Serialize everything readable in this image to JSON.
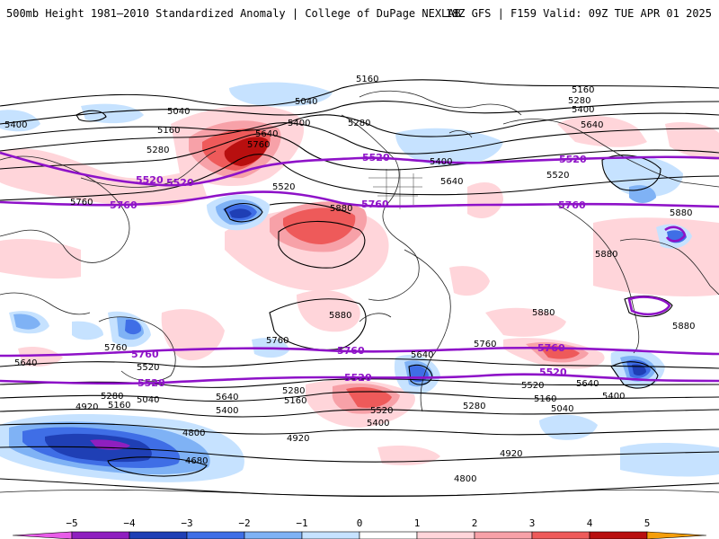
{
  "header": {
    "title_left": "500mb Height 1981–2010 Standardized Anomaly | College of DuPage NEXLAB",
    "title_right": "18Z GFS | F159 Valid: 09Z TUE APR 01 2025"
  },
  "map": {
    "contour_labels_black": [
      "5160",
      "5040",
      "5400",
      "5160",
      "5280",
      "5640",
      "5760",
      "5400",
      "5280",
      "5040",
      "5520",
      "5160",
      "5280",
      "5400",
      "5640",
      "5520",
      "5400",
      "5640",
      "5880",
      "5760",
      "5880",
      "5880",
      "5880",
      "5760",
      "5760",
      "5640",
      "5520",
      "5280",
      "5160",
      "5040",
      "4920",
      "4800",
      "4680",
      "5640",
      "5400",
      "5280",
      "5160",
      "5400",
      "5520",
      "5640",
      "5400",
      "5280",
      "5160",
      "5040",
      "4920",
      "4920",
      "4800",
      "5760",
      "5520",
      "5640",
      "5880",
      "5880"
    ],
    "contour_labels_purple": [
      "5520",
      "5520",
      "5520",
      "5520",
      "5760",
      "5760",
      "5760",
      "5760",
      "5760",
      "5760",
      "5520",
      "5520",
      "5520"
    ],
    "colors": {
      "neg1": "#c6e2ff",
      "neg2": "#7fb2f5",
      "neg3": "#3f6ee6",
      "neg4": "#1f3fb5",
      "neg5": "#8f1fbf",
      "pos1": "#ffd5da",
      "pos2": "#f7a1a8",
      "pos3": "#ee5a5a",
      "pos4": "#b80f0f",
      "pos5": "#f59e0b",
      "purple_line": "#8e12c8",
      "contour": "#000000",
      "coast": "#222222"
    }
  },
  "colorbar": {
    "ticks": [
      "−5",
      "−4",
      "−3",
      "−2",
      "−1",
      "0",
      "1",
      "2",
      "3",
      "4",
      "5"
    ],
    "colors": [
      "#e85ce8",
      "#8f1fbf",
      "#1f3fb5",
      "#3f6ee6",
      "#7fb2f5",
      "#c6e2ff",
      "#ffffff",
      "#ffd5da",
      "#f7a1a8",
      "#ee5a5a",
      "#b80f0f",
      "#f59e0b"
    ]
  }
}
